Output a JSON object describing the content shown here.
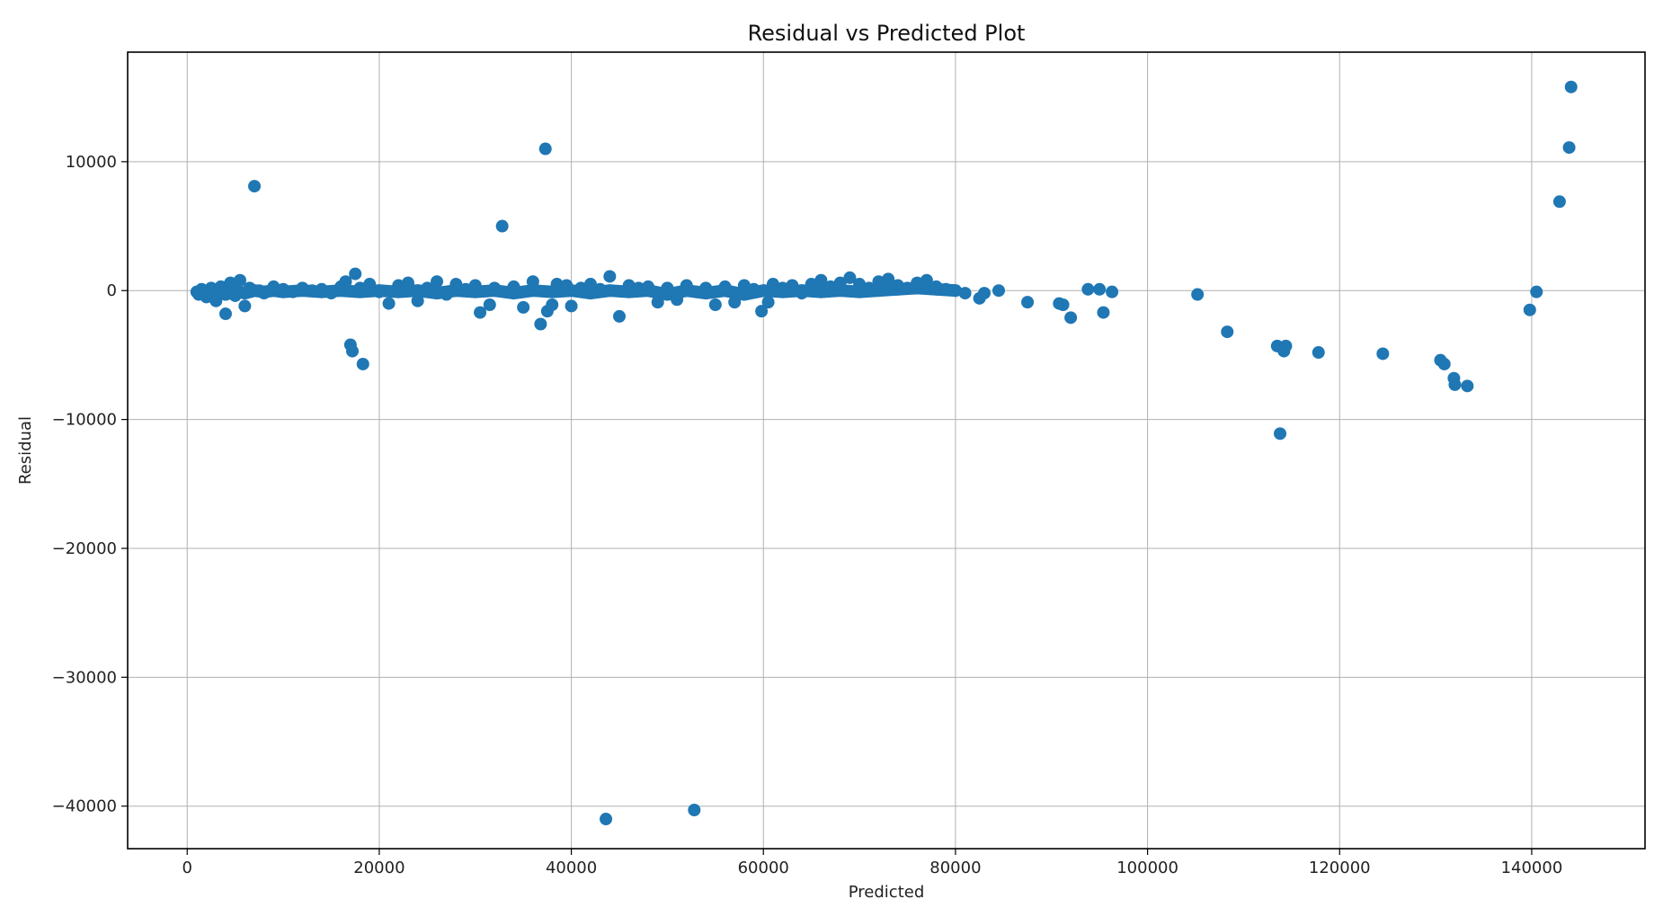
{
  "chart_data": {
    "type": "scatter",
    "title": "Residual vs Predicted Plot",
    "xlabel": "Predicted",
    "ylabel": "Residual",
    "xlim": [
      -6200,
      151800
    ],
    "ylim": [
      -43300,
      18500
    ],
    "xticks": [
      0,
      20000,
      40000,
      60000,
      80000,
      100000,
      120000,
      140000
    ],
    "xtick_labels": [
      "0",
      "20000",
      "40000",
      "60000",
      "80000",
      "100000",
      "120000",
      "140000"
    ],
    "yticks": [
      10000,
      0,
      -10000,
      -20000,
      -30000,
      -40000
    ],
    "ytick_labels": [
      "10000",
      "0",
      "−10000",
      "−20000",
      "−30000",
      "−40000"
    ],
    "grid": true,
    "legend": "none",
    "marker_color": "#1f77b4",
    "series": [
      {
        "points": [
          [
            1200,
            -300
          ],
          [
            1500,
            100
          ],
          [
            2000,
            -500
          ],
          [
            2500,
            200
          ],
          [
            3000,
            -800
          ],
          [
            3500,
            300
          ],
          [
            4000,
            -1800
          ],
          [
            4500,
            600
          ],
          [
            5000,
            -400
          ],
          [
            5500,
            800
          ],
          [
            6000,
            -1200
          ],
          [
            6500,
            200
          ],
          [
            7000,
            8100
          ],
          [
            7500,
            0
          ],
          [
            8000,
            -200
          ],
          [
            9000,
            300
          ],
          [
            10000,
            100
          ],
          [
            11000,
            -100
          ],
          [
            12000,
            200
          ],
          [
            13000,
            0
          ],
          [
            14000,
            100
          ],
          [
            15000,
            -200
          ],
          [
            16000,
            300
          ],
          [
            16500,
            700
          ],
          [
            17000,
            -4200
          ],
          [
            17200,
            -4700
          ],
          [
            17500,
            1300
          ],
          [
            18000,
            200
          ],
          [
            18300,
            -5700
          ],
          [
            19000,
            500
          ],
          [
            20000,
            -100
          ],
          [
            21000,
            -1000
          ],
          [
            22000,
            400
          ],
          [
            23000,
            600
          ],
          [
            24000,
            -800
          ],
          [
            25000,
            200
          ],
          [
            26000,
            700
          ],
          [
            27000,
            -300
          ],
          [
            28000,
            500
          ],
          [
            29000,
            100
          ],
          [
            30000,
            400
          ],
          [
            30500,
            -1700
          ],
          [
            31500,
            -1100
          ],
          [
            32000,
            200
          ],
          [
            32800,
            5000
          ],
          [
            34000,
            300
          ],
          [
            35000,
            -1300
          ],
          [
            36000,
            700
          ],
          [
            36800,
            -2600
          ],
          [
            37300,
            11000
          ],
          [
            37500,
            -1600
          ],
          [
            38000,
            -1100
          ],
          [
            38500,
            500
          ],
          [
            39500,
            400
          ],
          [
            40000,
            -1200
          ],
          [
            41000,
            200
          ],
          [
            42000,
            500
          ],
          [
            43000,
            100
          ],
          [
            43600,
            -41000
          ],
          [
            44000,
            1100
          ],
          [
            45000,
            -2000
          ],
          [
            46000,
            400
          ],
          [
            47000,
            200
          ],
          [
            48000,
            300
          ],
          [
            49000,
            -900
          ],
          [
            50000,
            200
          ],
          [
            51000,
            -700
          ],
          [
            52000,
            400
          ],
          [
            52800,
            -40300
          ],
          [
            53000,
            -100
          ],
          [
            54000,
            200
          ],
          [
            55000,
            -1100
          ],
          [
            56000,
            300
          ],
          [
            57000,
            -900
          ],
          [
            58000,
            400
          ],
          [
            59000,
            100
          ],
          [
            59800,
            -1600
          ],
          [
            60500,
            -900
          ],
          [
            61000,
            500
          ],
          [
            62000,
            200
          ],
          [
            63000,
            400
          ],
          [
            64000,
            -200
          ],
          [
            65000,
            500
          ],
          [
            66000,
            800
          ],
          [
            67000,
            300
          ],
          [
            68000,
            600
          ],
          [
            69000,
            1000
          ],
          [
            70000,
            500
          ],
          [
            71000,
            200
          ],
          [
            72000,
            700
          ],
          [
            73000,
            900
          ],
          [
            74000,
            400
          ],
          [
            75000,
            200
          ],
          [
            76000,
            600
          ],
          [
            77000,
            800
          ],
          [
            78000,
            300
          ],
          [
            79000,
            100
          ],
          [
            80000,
            0
          ],
          [
            81000,
            -200
          ],
          [
            82500,
            -600
          ],
          [
            83000,
            -200
          ],
          [
            84500,
            0
          ],
          [
            87500,
            -900
          ],
          [
            90800,
            -1000
          ],
          [
            91200,
            -1100
          ],
          [
            92000,
            -2100
          ],
          [
            93800,
            100
          ],
          [
            95000,
            100
          ],
          [
            95400,
            -1700
          ],
          [
            96300,
            -100
          ],
          [
            105200,
            -300
          ],
          [
            108300,
            -3200
          ],
          [
            113500,
            -4300
          ],
          [
            113800,
            -11100
          ],
          [
            114200,
            -4700
          ],
          [
            114400,
            -4300
          ],
          [
            117800,
            -4800
          ],
          [
            124500,
            -4900
          ],
          [
            130500,
            -5400
          ],
          [
            130900,
            -5700
          ],
          [
            131900,
            -6800
          ],
          [
            132000,
            -7300
          ],
          [
            133300,
            -7400
          ],
          [
            139800,
            -1500
          ],
          [
            140500,
            -100
          ],
          [
            142900,
            6900
          ],
          [
            143900,
            11100
          ],
          [
            144100,
            15800
          ]
        ]
      },
      {
        "band": true,
        "points": [
          [
            1000,
            -100
          ],
          [
            2000,
            -200
          ],
          [
            3000,
            0
          ],
          [
            4000,
            -300
          ],
          [
            5000,
            0
          ],
          [
            6000,
            -200
          ],
          [
            7000,
            0
          ],
          [
            8000,
            -100
          ],
          [
            9000,
            0
          ],
          [
            10000,
            -100
          ],
          [
            12000,
            0
          ],
          [
            14000,
            -100
          ],
          [
            16000,
            0
          ],
          [
            18000,
            -100
          ],
          [
            20000,
            0
          ],
          [
            22000,
            -100
          ],
          [
            24000,
            0
          ],
          [
            26000,
            -200
          ],
          [
            28000,
            0
          ],
          [
            30000,
            -100
          ],
          [
            32000,
            0
          ],
          [
            34000,
            -200
          ],
          [
            36000,
            0
          ],
          [
            38000,
            -100
          ],
          [
            40000,
            0
          ],
          [
            42000,
            -200
          ],
          [
            44000,
            0
          ],
          [
            46000,
            -100
          ],
          [
            48000,
            0
          ],
          [
            50000,
            -300
          ],
          [
            52000,
            0
          ],
          [
            54000,
            -200
          ],
          [
            56000,
            0
          ],
          [
            58000,
            -300
          ],
          [
            60000,
            0
          ],
          [
            62000,
            -100
          ],
          [
            64000,
            0
          ],
          [
            66000,
            -100
          ],
          [
            68000,
            0
          ],
          [
            70000,
            -100
          ],
          [
            72000,
            0
          ],
          [
            74000,
            100
          ],
          [
            76000,
            200
          ],
          [
            78000,
            100
          ],
          [
            80000,
            0
          ]
        ]
      }
    ]
  }
}
